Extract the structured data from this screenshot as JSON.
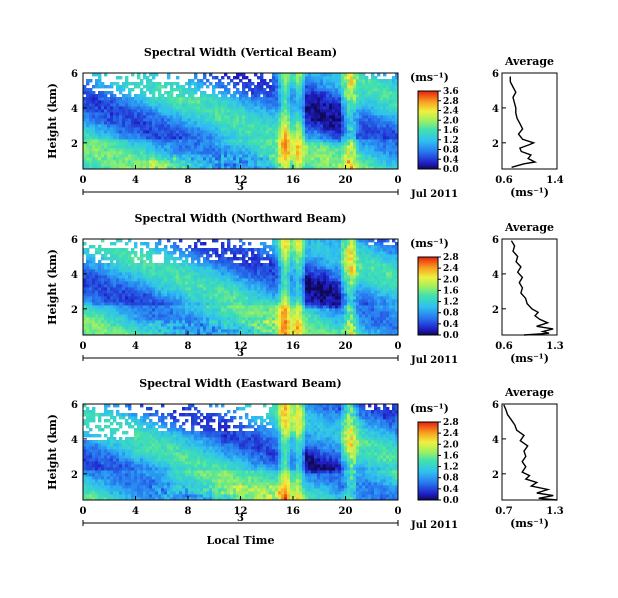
{
  "chart_data": [
    {
      "type": "heatmap",
      "title": "Spectral Width (Vertical Beam)",
      "ylabel": "Height (km)",
      "xlabel": "",
      "xticks": [
        "0",
        "4",
        "8",
        "12",
        "16",
        "20",
        "0"
      ],
      "xlim": [
        0,
        24
      ],
      "yticks": [
        "2",
        "4",
        "6"
      ],
      "ylim": [
        0.5,
        6
      ],
      "date_label": "3",
      "month_label": "Jul 2011",
      "colorbar": {
        "unit": "(ms⁻¹)",
        "ticks": [
          "0.0",
          "0.4",
          "0.8",
          "1.2",
          "1.6",
          "2.0",
          "2.4",
          "2.8",
          "3.6"
        ],
        "range": [
          0.0,
          3.6
        ]
      },
      "heatmap_desc": "Spectral width mostly 0.4-1.2 with enhanced values near 15-16 h and 20-21 h",
      "profile": {
        "title": "Average",
        "xlabel": "(ms⁻¹)",
        "xlim": [
          0.6,
          1.4
        ],
        "xticks": [
          "0.6",
          "1.4"
        ],
        "yticks": [
          "2",
          "4",
          "6"
        ],
        "ylim": [
          0.5,
          6
        ],
        "points": [
          [
            0.74,
            0.6
          ],
          [
            0.92,
            0.8
          ],
          [
            1.08,
            0.9
          ],
          [
            0.98,
            1.1
          ],
          [
            1.02,
            1.3
          ],
          [
            0.88,
            1.5
          ],
          [
            0.86,
            1.7
          ],
          [
            1.0,
            1.9
          ],
          [
            1.06,
            2.0
          ],
          [
            0.9,
            2.2
          ],
          [
            0.84,
            2.5
          ],
          [
            0.9,
            2.8
          ],
          [
            0.86,
            3.1
          ],
          [
            0.82,
            3.4
          ],
          [
            0.8,
            3.7
          ],
          [
            0.8,
            4.0
          ],
          [
            0.78,
            4.3
          ],
          [
            0.76,
            4.6
          ],
          [
            0.8,
            4.9
          ],
          [
            0.76,
            5.2
          ],
          [
            0.72,
            5.5
          ],
          [
            0.72,
            5.8
          ]
        ]
      }
    },
    {
      "type": "heatmap",
      "title": "Spectral Width (Northward Beam)",
      "ylabel": "Height (km)",
      "xlabel": "",
      "xticks": [
        "0",
        "4",
        "8",
        "12",
        "16",
        "20",
        "0"
      ],
      "xlim": [
        0,
        24
      ],
      "yticks": [
        "2",
        "4",
        "6"
      ],
      "ylim": [
        0.5,
        6
      ],
      "date_label": "3",
      "month_label": "Jul 2011",
      "colorbar": {
        "unit": "(ms⁻¹)",
        "ticks": [
          "0.0",
          "0.4",
          "0.8",
          "1.2",
          "1.6",
          "2.0",
          "2.4",
          "2.8"
        ],
        "range": [
          0.0,
          2.8
        ]
      },
      "heatmap_desc": "Spectral width mostly 0.4-1.2 with enhanced values near 15-16 h and 20-21 h",
      "profile": {
        "title": "Average",
        "xlabel": "(ms⁻¹)",
        "xlim": [
          0.6,
          1.3
        ],
        "xticks": [
          "0.6",
          "1.3"
        ],
        "yticks": [
          "2",
          "4",
          "6"
        ],
        "ylim": [
          0.5,
          6
        ],
        "points": [
          [
            0.88,
            0.5
          ],
          [
            1.2,
            0.6
          ],
          [
            1.12,
            0.7
          ],
          [
            1.25,
            0.85
          ],
          [
            1.04,
            1.0
          ],
          [
            1.18,
            1.2
          ],
          [
            1.08,
            1.4
          ],
          [
            1.02,
            1.6
          ],
          [
            1.06,
            1.8
          ],
          [
            0.98,
            2.0
          ],
          [
            0.92,
            2.3
          ],
          [
            0.9,
            2.6
          ],
          [
            0.84,
            2.9
          ],
          [
            0.86,
            3.2
          ],
          [
            0.82,
            3.5
          ],
          [
            0.86,
            3.8
          ],
          [
            0.8,
            4.1
          ],
          [
            0.84,
            4.4
          ],
          [
            0.78,
            4.7
          ],
          [
            0.8,
            5.0
          ],
          [
            0.74,
            5.3
          ],
          [
            0.76,
            5.6
          ],
          [
            0.72,
            5.9
          ]
        ]
      }
    },
    {
      "type": "heatmap",
      "title": "Spectral Width (Eastward Beam)",
      "ylabel": "Height (km)",
      "xlabel": "Local Time",
      "xticks": [
        "0",
        "4",
        "8",
        "12",
        "16",
        "20",
        "0"
      ],
      "xlim": [
        0,
        24
      ],
      "yticks": [
        "2",
        "4",
        "6"
      ],
      "ylim": [
        0.5,
        6
      ],
      "date_label": "3",
      "month_label": "Jul 2011",
      "colorbar": {
        "unit": "(ms⁻¹)",
        "ticks": [
          "0.0",
          "0.4",
          "0.8",
          "1.2",
          "1.6",
          "2.0",
          "2.4",
          "2.8"
        ],
        "range": [
          0.0,
          2.8
        ]
      },
      "heatmap_desc": "Spectral width mostly 0.4-1.2 with enhanced values near 15-16 h and 20-21 h",
      "profile": {
        "title": "Average",
        "xlabel": "(ms⁻¹)",
        "xlim": [
          0.7,
          1.3
        ],
        "xticks": [
          "0.7",
          "1.3"
        ],
        "yticks": [
          "2",
          "4",
          "6"
        ],
        "ylim": [
          0.5,
          6
        ],
        "points": [
          [
            1.3,
            0.5
          ],
          [
            1.1,
            0.6
          ],
          [
            1.26,
            0.75
          ],
          [
            1.08,
            0.9
          ],
          [
            1.2,
            1.1
          ],
          [
            1.02,
            1.3
          ],
          [
            1.08,
            1.5
          ],
          [
            0.96,
            1.7
          ],
          [
            1.0,
            1.9
          ],
          [
            0.92,
            2.1
          ],
          [
            0.96,
            2.4
          ],
          [
            0.92,
            2.7
          ],
          [
            0.96,
            3.0
          ],
          [
            0.94,
            3.3
          ],
          [
            0.98,
            3.6
          ],
          [
            0.9,
            3.9
          ],
          [
            0.94,
            4.2
          ],
          [
            0.86,
            4.5
          ],
          [
            0.84,
            4.8
          ],
          [
            0.8,
            5.1
          ],
          [
            0.76,
            5.4
          ],
          [
            0.74,
            5.7
          ],
          [
            0.72,
            5.95
          ]
        ]
      }
    }
  ]
}
